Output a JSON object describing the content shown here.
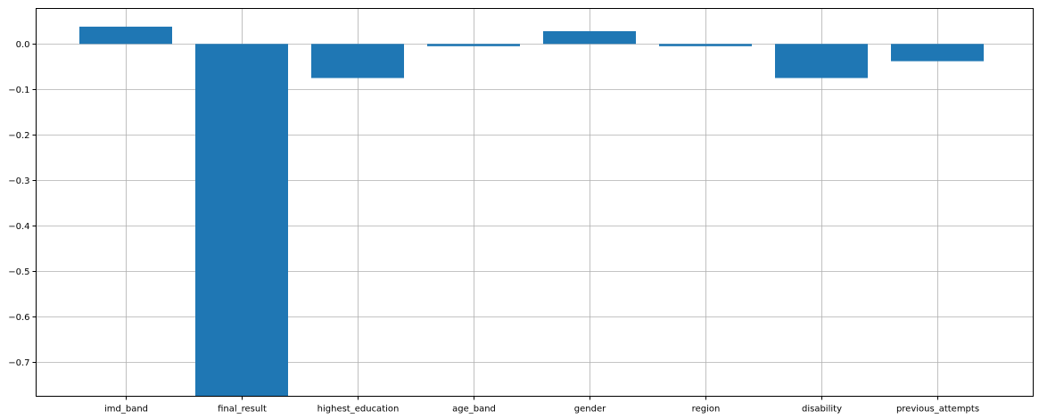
{
  "chart_data": {
    "type": "bar",
    "title": "",
    "xlabel": "",
    "ylabel": "",
    "categories": [
      "imd_band",
      "final_result",
      "highest_education",
      "age_band",
      "gender",
      "region",
      "disability",
      "previous_attempts"
    ],
    "values": [
      0.038,
      -0.775,
      -0.075,
      -0.005,
      0.028,
      -0.005,
      -0.075,
      -0.038
    ],
    "ylim": [
      -0.775,
      0.078
    ],
    "yticks": [
      0.0,
      -0.1,
      -0.2,
      -0.3,
      -0.4,
      -0.5,
      -0.6,
      -0.7
    ],
    "ytick_labels": [
      "0.0",
      "−0.1",
      "−0.2",
      "−0.3",
      "−0.4",
      "−0.5",
      "−0.6",
      "−0.7"
    ],
    "grid": true,
    "bar_color": "#1f77b4",
    "grid_color": "#b0b0b0",
    "legend": "none"
  }
}
